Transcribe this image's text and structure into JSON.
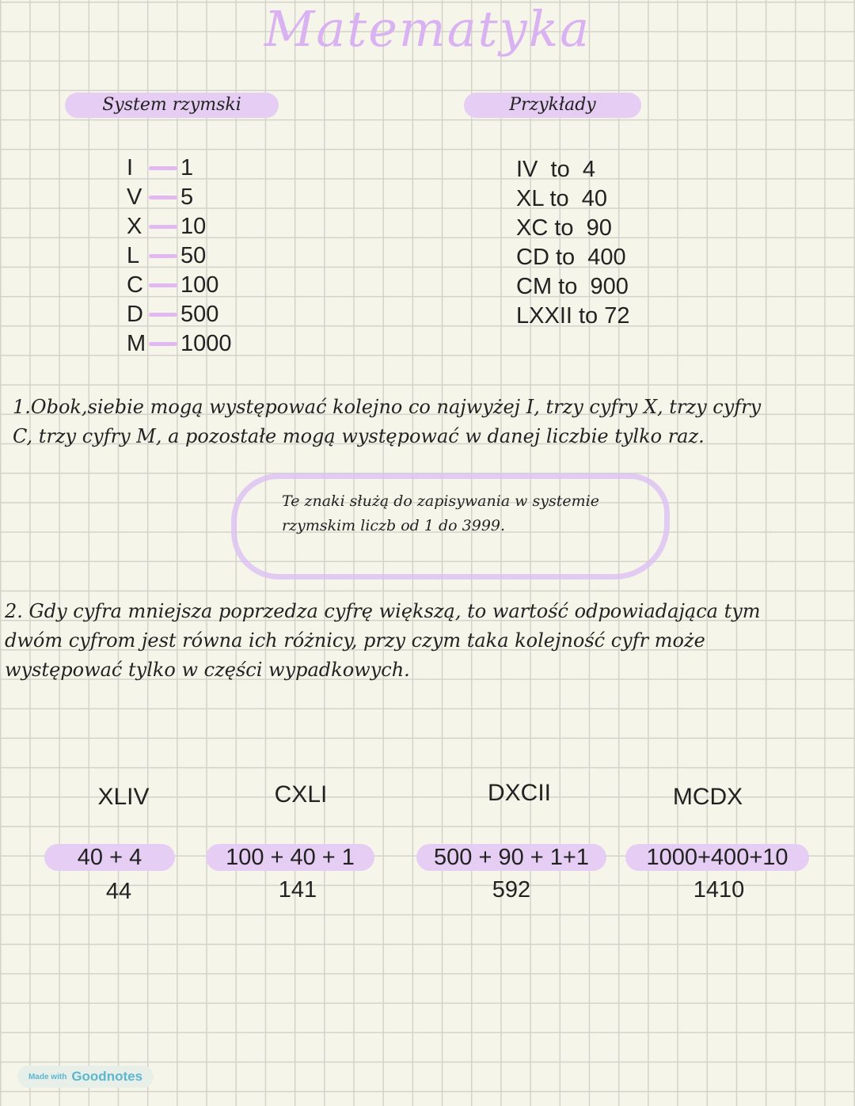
{
  "title": "Matematyka",
  "left_header": "System rzymski",
  "right_header": "Przykłady",
  "numerals": [
    {
      "symbol": "I",
      "value": "1"
    },
    {
      "symbol": "V",
      "value": "5"
    },
    {
      "symbol": "X",
      "value": "10"
    },
    {
      "symbol": "L",
      "value": "50"
    },
    {
      "symbol": "C",
      "value": "100"
    },
    {
      "symbol": "D",
      "value": "500"
    },
    {
      "symbol": "M",
      "value": "1000"
    }
  ],
  "examples": [
    "IV  to  4",
    "XL to  40",
    "XC to  90",
    "CD to  400",
    "CM to  900",
    "LXXII to 72"
  ],
  "rule1": {
    "line1": "1.Obok,siebie mogą występować kolejno co najwyżej I, trzy cyfry X, trzy cyfry",
    "line2": "C, trzy cyfry M, a pozostałe mogą występować w danej liczbie tylko raz."
  },
  "note": {
    "line1": "Te znaki służą do zapisywania w systemie",
    "line2": "rzymskim liczb od 1 do 3999."
  },
  "rule2": {
    "line1": "2. Gdy cyfra mniejsza poprzedza cyfrę większą, to wartość odpowiadająca tym",
    "line2": "dwóm cyfrom jest równa ich różnicy, przy czym taka kolejność cyfr może",
    "line3": "występować tylko w części wypadkowych."
  },
  "conversions": [
    {
      "roman": "XLIV",
      "sum": "40 + 4",
      "result": "44"
    },
    {
      "roman": "CXLI",
      "sum": "100 + 40 + 1",
      "result": "141"
    },
    {
      "roman": "DXCII",
      "sum": "500 + 90 + 1+1",
      "result": "592"
    },
    {
      "roman": "MCDX",
      "sum": "1000+400+10",
      "result": "1410"
    }
  ],
  "watermark": {
    "prefix": "Made with",
    "brand": "Goodnotes"
  },
  "colors": {
    "accent": "#d9b2f2",
    "highlight": "#e6cdf3",
    "grid": "#d3d3cb",
    "background": "#f6f5e9"
  }
}
